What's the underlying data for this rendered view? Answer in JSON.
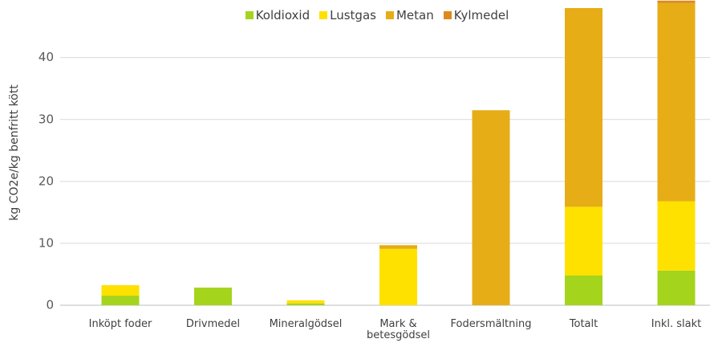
{
  "chart_data": {
    "type": "stacked_bar",
    "y_label": "kg CO2e/kg benfritt kött",
    "categories": [
      "Inköpt foder",
      "Drivmedel",
      "Mineralgödsel",
      "Mark & betesgödsel",
      "Fodersmältning",
      "Totalt",
      "Inkl. slakt"
    ],
    "series": [
      {
        "name": "Koldioxid",
        "color": "#a5d41d",
        "values": [
          1.55,
          2.85,
          0.3,
          0,
          0,
          4.8,
          5.6
        ]
      },
      {
        "name": "Lustgas",
        "color": "#ffe100",
        "values": [
          1.7,
          0,
          0.5,
          9.1,
          0,
          11.1,
          11.2
        ]
      },
      {
        "name": "Metan",
        "color": "#e6ad17",
        "values": [
          0,
          0,
          0,
          0.6,
          31.5,
          32.1,
          32.0
        ]
      },
      {
        "name": "Kylmedel",
        "color": "#dd8a1c",
        "values": [
          0,
          0,
          0,
          0,
          0,
          0,
          0.4
        ]
      }
    ],
    "ylim": [
      0,
      49.3
    ],
    "yticks": [
      0,
      10,
      20,
      30,
      40
    ],
    "grid": true,
    "legend": "top"
  }
}
